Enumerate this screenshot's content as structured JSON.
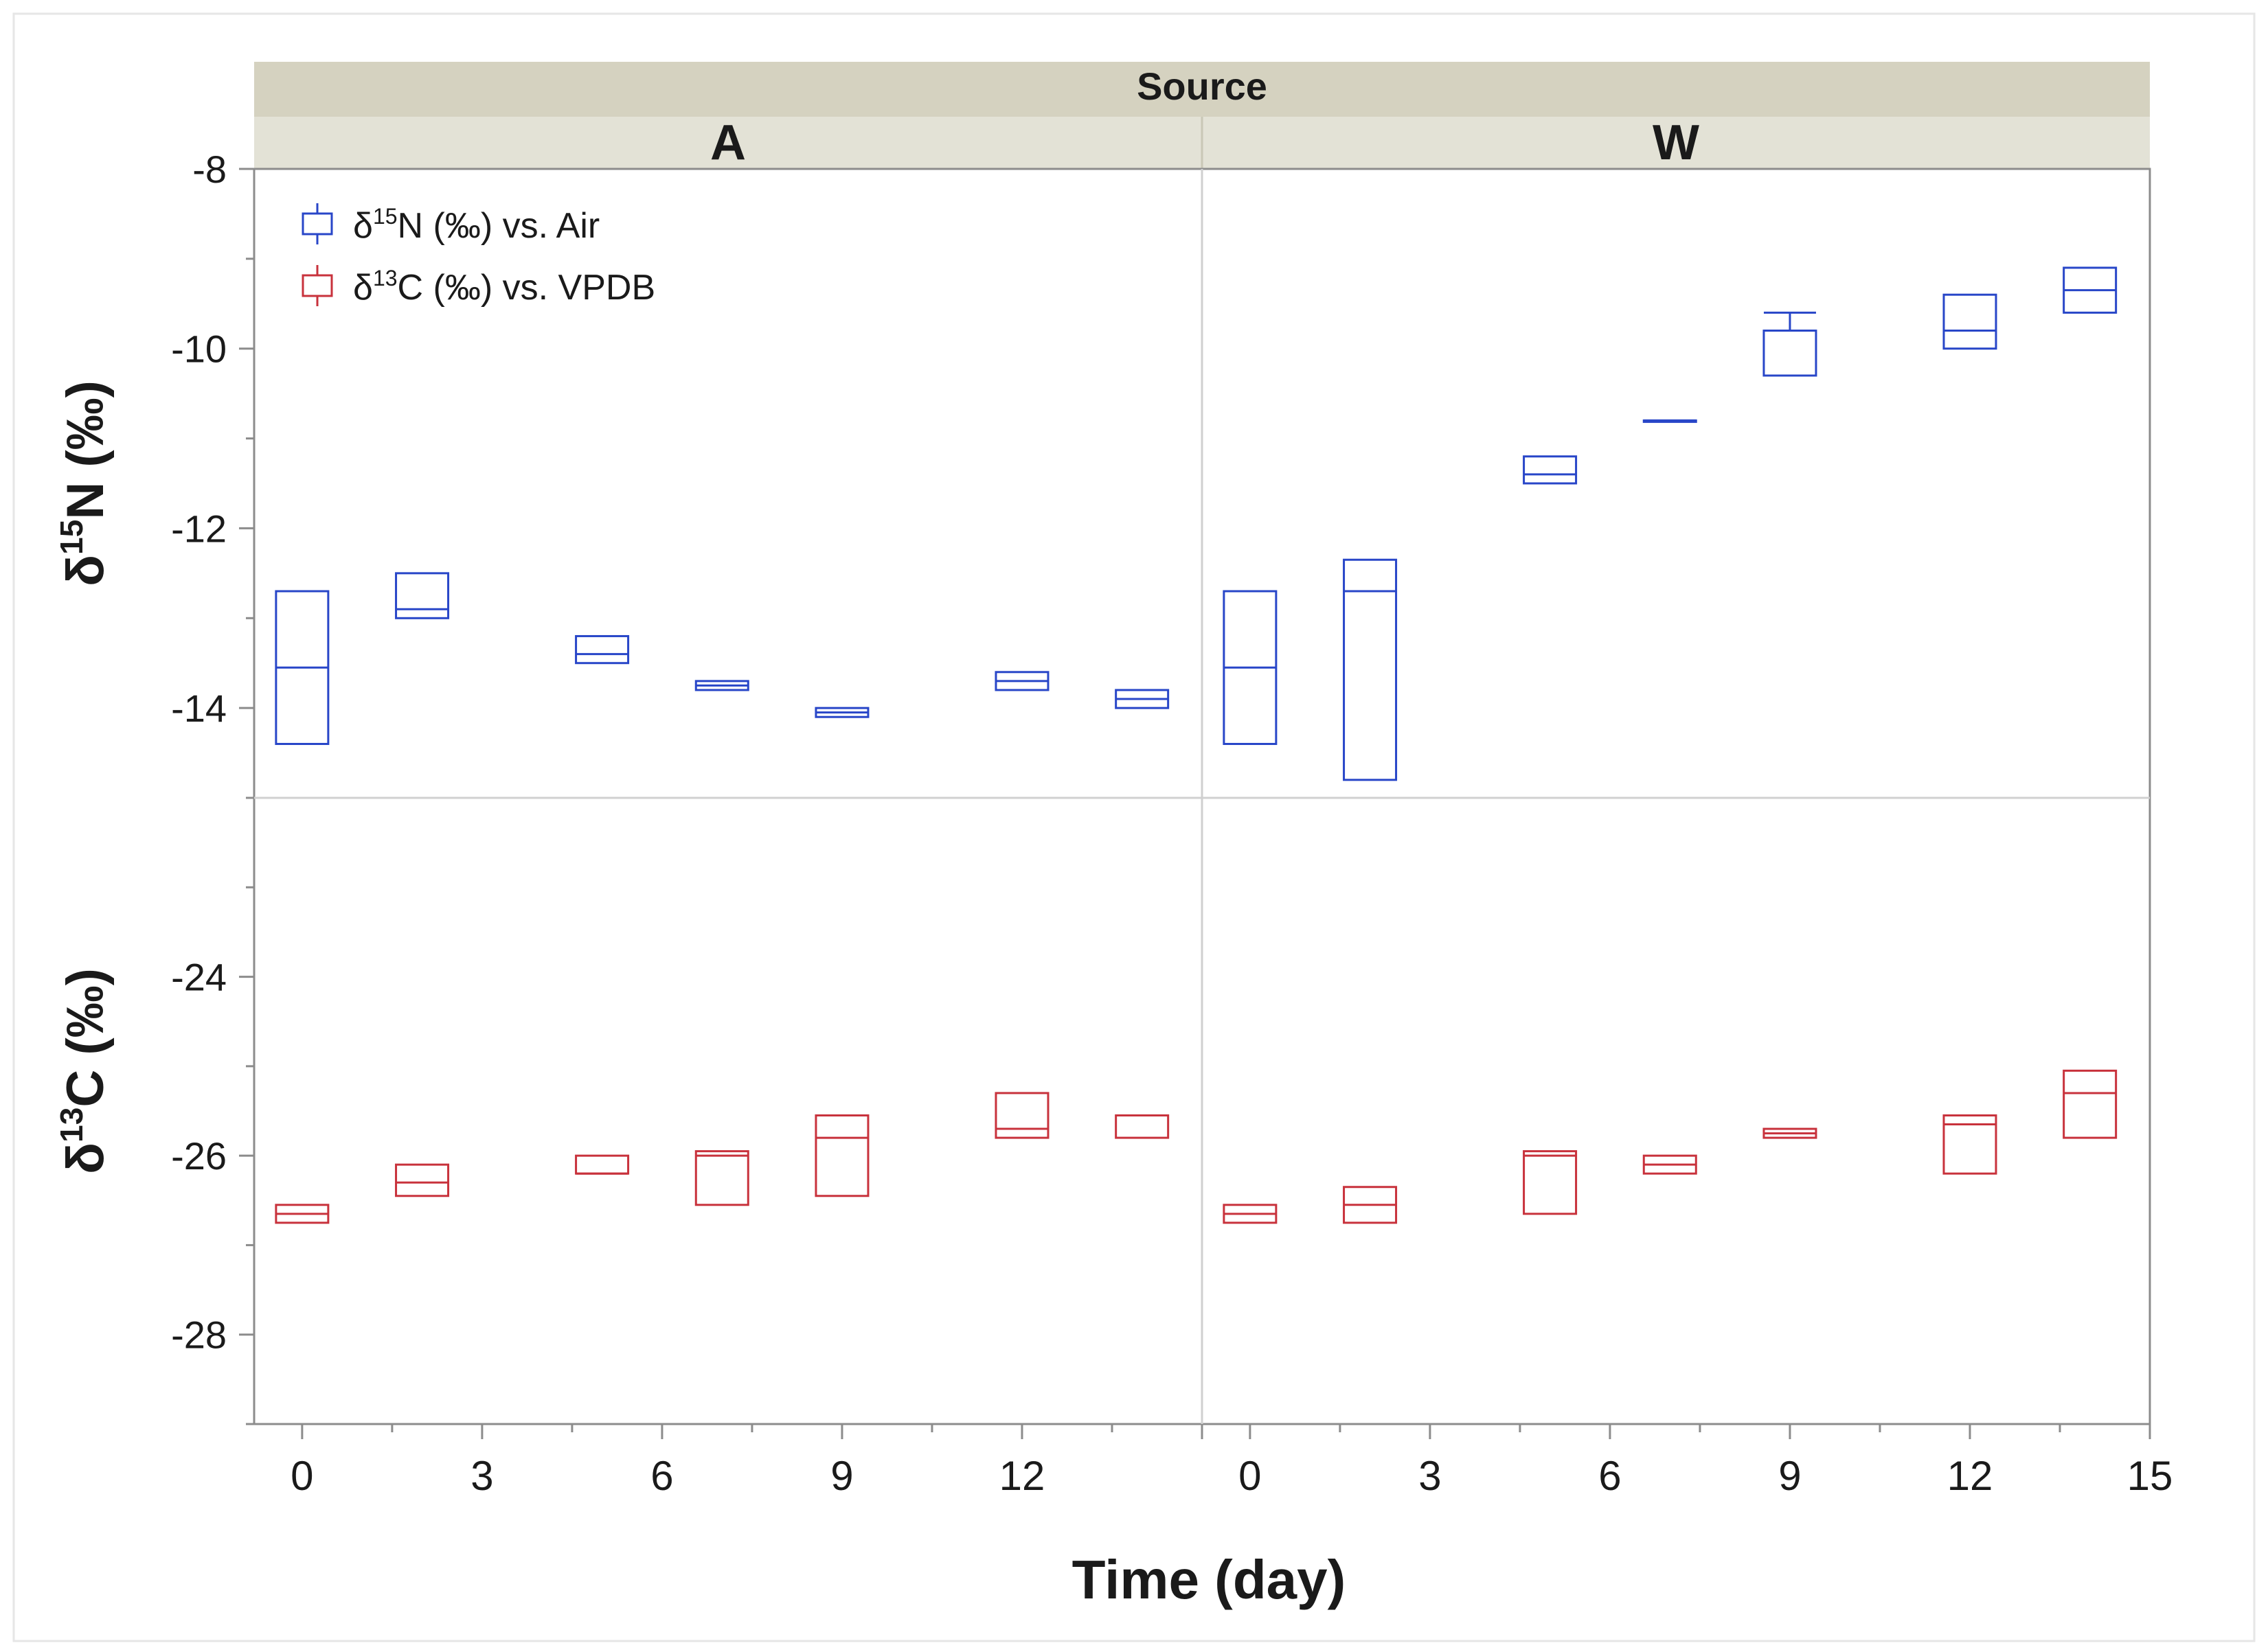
{
  "chart_data": {
    "type": "box",
    "facet_title": "Source",
    "facets": [
      "A",
      "W"
    ],
    "xlabel": "Time (day)",
    "x_ticks": [
      0,
      3,
      6,
      9,
      12,
      15
    ],
    "x_tick_labels_A": [
      "0",
      "3",
      "6",
      "9",
      "12"
    ],
    "x_tick_labels_W": [
      "0",
      "3",
      "6",
      "9",
      "12",
      "15"
    ],
    "xlim": [
      -0.8,
      15
    ],
    "panels": [
      {
        "name": "N",
        "ylabel_prefix": "δ",
        "ylabel_sup": "15",
        "ylabel_suffix": "N (‰)",
        "ylim": [
          -15,
          -8
        ],
        "y_ticks": [
          -14,
          -12,
          -10,
          -8
        ],
        "y_tick_labels": [
          "-14",
          "-12",
          "-10",
          "-8"
        ],
        "series_name": "δ15N (‰) vs. Air",
        "color": "#2846c8",
        "boxes": {
          "A": [
            {
              "x": 0,
              "q1": -14.4,
              "med": -13.55,
              "q3": -12.7
            },
            {
              "x": 2,
              "q1": -13.0,
              "med": -12.9,
              "q3": -12.5
            },
            {
              "x": 5,
              "q1": -13.5,
              "med": -13.4,
              "q3": -13.2
            },
            {
              "x": 7,
              "q1": -13.8,
              "med": -13.75,
              "q3": -13.7
            },
            {
              "x": 9,
              "q1": -14.1,
              "med": -14.05,
              "q3": -14.0
            },
            {
              "x": 12,
              "q1": -13.8,
              "med": -13.7,
              "q3": -13.6
            },
            {
              "x": 14,
              "q1": -14.0,
              "med": -13.9,
              "q3": -13.8
            }
          ],
          "W": [
            {
              "x": 0,
              "q1": -14.4,
              "med": -13.55,
              "q3": -12.7
            },
            {
              "x": 2,
              "q1": -14.8,
              "med": -12.7,
              "q3": -12.35
            },
            {
              "x": 5,
              "q1": -11.5,
              "med": -11.4,
              "q3": -11.2
            },
            {
              "x": 7,
              "q1": -10.8,
              "med": -10.8,
              "q3": -10.8
            },
            {
              "x": 9,
              "q1": -10.3,
              "med": -9.8,
              "q3": -9.8,
              "whisker_high": -9.6
            },
            {
              "x": 12,
              "q1": -10.0,
              "med": -9.8,
              "q3": -9.4
            },
            {
              "x": 14,
              "q1": -9.6,
              "med": -9.35,
              "q3": -9.1
            }
          ]
        }
      },
      {
        "name": "C",
        "ylabel_prefix": "δ",
        "ylabel_sup": "13",
        "ylabel_suffix": "C (‰)",
        "ylim": [
          -29,
          -22
        ],
        "y_ticks": [
          -28,
          -26,
          -24
        ],
        "y_tick_labels": [
          "-28",
          "-26",
          "-24"
        ],
        "series_name": "δ13C (‰) vs. VPDB",
        "color": "#c8323c",
        "boxes": {
          "A": [
            {
              "x": 0,
              "q1": -26.75,
              "med": -26.65,
              "q3": -26.55
            },
            {
              "x": 2,
              "q1": -26.45,
              "med": -26.3,
              "q3": -26.1
            },
            {
              "x": 5,
              "q1": -26.2,
              "med": -26.2,
              "q3": -26.0
            },
            {
              "x": 7,
              "q1": -26.55,
              "med": -26.0,
              "q3": -25.95
            },
            {
              "x": 9,
              "q1": -26.45,
              "med": -25.8,
              "q3": -25.55
            },
            {
              "x": 12,
              "q1": -25.8,
              "med": -25.7,
              "q3": -25.3
            },
            {
              "x": 14,
              "q1": -25.8,
              "med": -25.55,
              "q3": -25.55
            }
          ],
          "W": [
            {
              "x": 0,
              "q1": -26.75,
              "med": -26.65,
              "q3": -26.55
            },
            {
              "x": 2,
              "q1": -26.75,
              "med": -26.55,
              "q3": -26.35
            },
            {
              "x": 5,
              "q1": -26.65,
              "med": -26.0,
              "q3": -25.95
            },
            {
              "x": 7,
              "q1": -26.2,
              "med": -26.1,
              "q3": -26.0
            },
            {
              "x": 9,
              "q1": -25.8,
              "med": -25.75,
              "q3": -25.7
            },
            {
              "x": 12,
              "q1": -26.2,
              "med": -25.65,
              "q3": -25.55
            },
            {
              "x": 14,
              "q1": -25.8,
              "med": -25.3,
              "q3": -25.05
            }
          ]
        }
      }
    ],
    "legend": {
      "position": "top-left",
      "entries": [
        {
          "prefix": "δ",
          "sup": "15",
          "suffix": "N (‰) vs. Air",
          "color": "#2846c8"
        },
        {
          "prefix": "δ",
          "sup": "13",
          "suffix": "C (‰) vs. VPDB",
          "color": "#c8323c"
        }
      ]
    }
  }
}
